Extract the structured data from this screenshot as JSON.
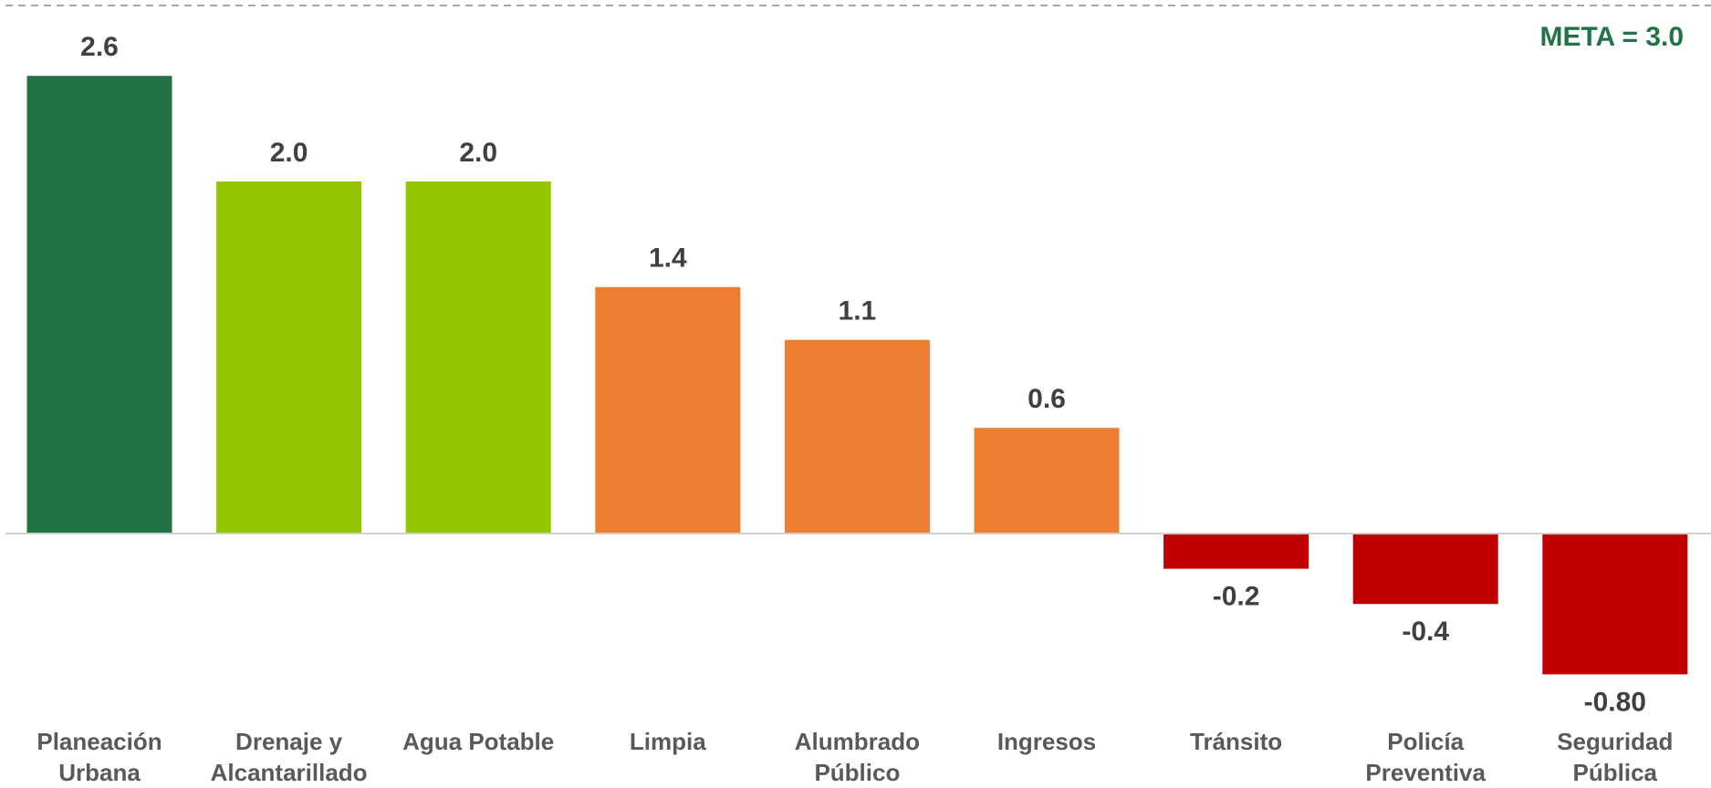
{
  "chart_data": {
    "type": "bar",
    "categories": [
      "Planeación Urbana",
      "Drenaje y Alcantarillado",
      "Agua Potable",
      "Limpia",
      "Alumbrado Público",
      "Ingresos",
      "Tránsito",
      "Policía Preventiva",
      "Seguridad Pública"
    ],
    "values": [
      2.6,
      2.0,
      2.0,
      1.4,
      1.1,
      0.6,
      -0.2,
      -0.4,
      -0.8
    ],
    "value_labels": [
      "2.6",
      "2.0",
      "2.0",
      "1.4",
      "1.1",
      "0.6",
      "-0.2",
      "-0.4",
      "-0.80"
    ],
    "colors": [
      "#217346",
      "#92c500",
      "#92c500",
      "#ed7d31",
      "#ed7d31",
      "#ed7d31",
      "#c00000",
      "#c00000",
      "#c00000"
    ],
    "ylim": [
      -1.0,
      3.0
    ],
    "meta": {
      "label": "META = 3.0",
      "value": 3.0,
      "color": "#217346"
    }
  }
}
